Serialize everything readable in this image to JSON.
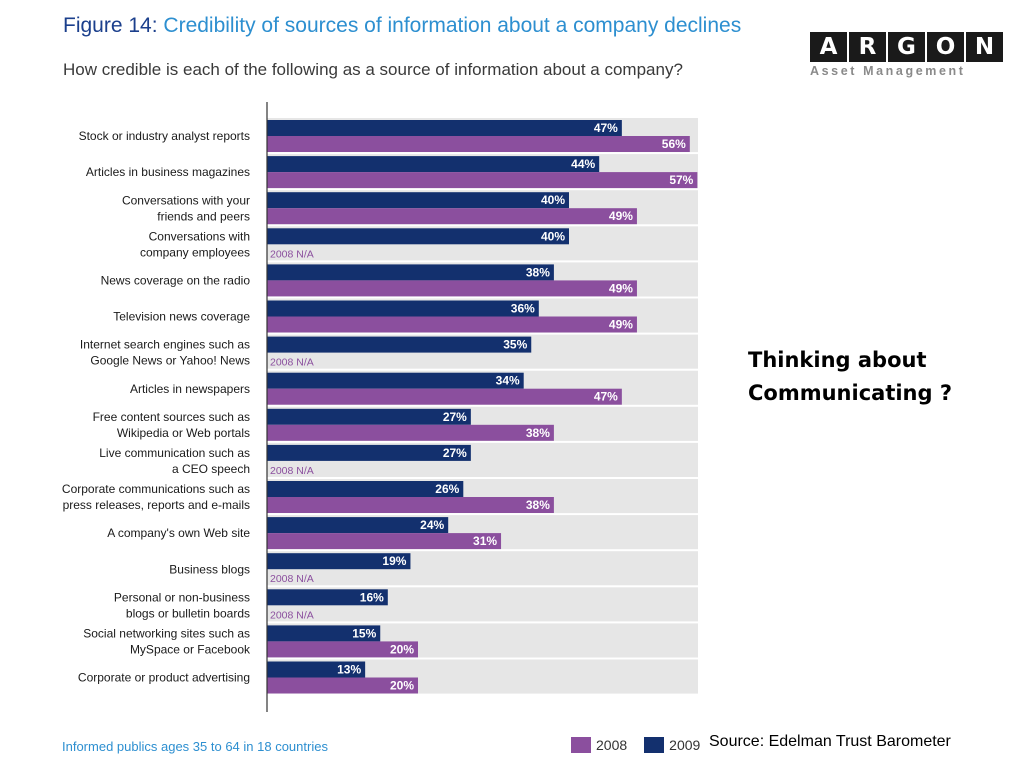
{
  "header": {
    "figure_number": "Figure 14:",
    "title": "Credibility of sources of information about a company declines",
    "subtitle": "How credible is each of the following as a source of information about a company?"
  },
  "logo": {
    "letters": [
      "A",
      "R",
      "G",
      "O",
      "N"
    ],
    "subtitle": "Asset Management"
  },
  "side_note": {
    "line1": "Thinking about",
    "line2": "Communicating ?"
  },
  "source": "Source: Edelman Trust Barometer",
  "footnote": "Informed publics ages 35 to 64 in 18 countries",
  "legend": [
    {
      "label": "2008",
      "color": "#8b4f9e"
    },
    {
      "label": "2009",
      "color": "#13306e"
    }
  ],
  "chart_data": {
    "type": "bar",
    "orientation": "horizontal",
    "xlim": [
      0,
      100
    ],
    "na_label": "2008 N/A",
    "categories": [
      [
        "Stock or industry analyst reports"
      ],
      [
        "Articles in business magazines"
      ],
      [
        "Conversations with your",
        "friends and peers"
      ],
      [
        "Conversations with",
        "company employees"
      ],
      [
        "News coverage on the radio"
      ],
      [
        "Television news coverage"
      ],
      [
        "Internet search engines such as",
        "Google News or Yahoo! News"
      ],
      [
        "Articles in newspapers"
      ],
      [
        "Free content sources such as",
        "Wikipedia or Web portals"
      ],
      [
        "Live communication such as",
        "a CEO speech"
      ],
      [
        "Corporate communications such as",
        "press releases, reports and e-mails"
      ],
      [
        "A company's own Web site"
      ],
      [
        "Business blogs"
      ],
      [
        "Personal or non-business",
        "blogs or bulletin boards"
      ],
      [
        "Social networking sites such as",
        "MySpace or Facebook"
      ],
      [
        "Corporate or product advertising"
      ]
    ],
    "series": [
      {
        "name": "2009",
        "color": "#13306e",
        "values": [
          47,
          44,
          40,
          40,
          38,
          36,
          35,
          34,
          27,
          27,
          26,
          24,
          19,
          16,
          15,
          13
        ]
      },
      {
        "name": "2008",
        "color": "#8b4f9e",
        "values": [
          56,
          57,
          49,
          null,
          49,
          49,
          null,
          47,
          38,
          null,
          38,
          31,
          null,
          null,
          20,
          20
        ]
      }
    ]
  }
}
